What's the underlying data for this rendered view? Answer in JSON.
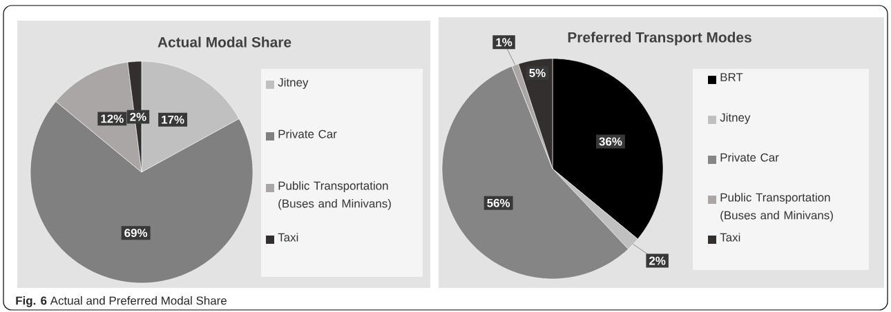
{
  "chart_data": [
    {
      "type": "pie",
      "title": "Actual Modal Share",
      "categories": [
        "Jitney",
        "Private Car",
        "Public Transportation (Buses and Minivans)",
        "Taxi"
      ],
      "values": [
        17,
        69,
        12,
        2
      ],
      "value_labels": [
        "17%",
        "69%",
        "12%",
        "2%"
      ],
      "colors": [
        "#c0c0c0",
        "#808080",
        "#aaa6a6",
        "#332f2f"
      ],
      "legend": "right",
      "annotations": [
        "**Fig. 6** Actual and Preferred Modal Share"
      ]
    },
    {
      "type": "pie",
      "title": "Preferred Transport Modes",
      "categories": [
        "BRT",
        "Jitney",
        "Private Car",
        "Public Transportation (Buses and Minivans)",
        "Taxi"
      ],
      "values": [
        36,
        2,
        56,
        1,
        5
      ],
      "value_labels": [
        "36%",
        "2%",
        "56%",
        "1%",
        "5%"
      ],
      "colors": [
        "#000000",
        "#c0c0c0",
        "#858585",
        "#aaa6a6",
        "#332f2f"
      ],
      "legend": "right"
    }
  ]
}
